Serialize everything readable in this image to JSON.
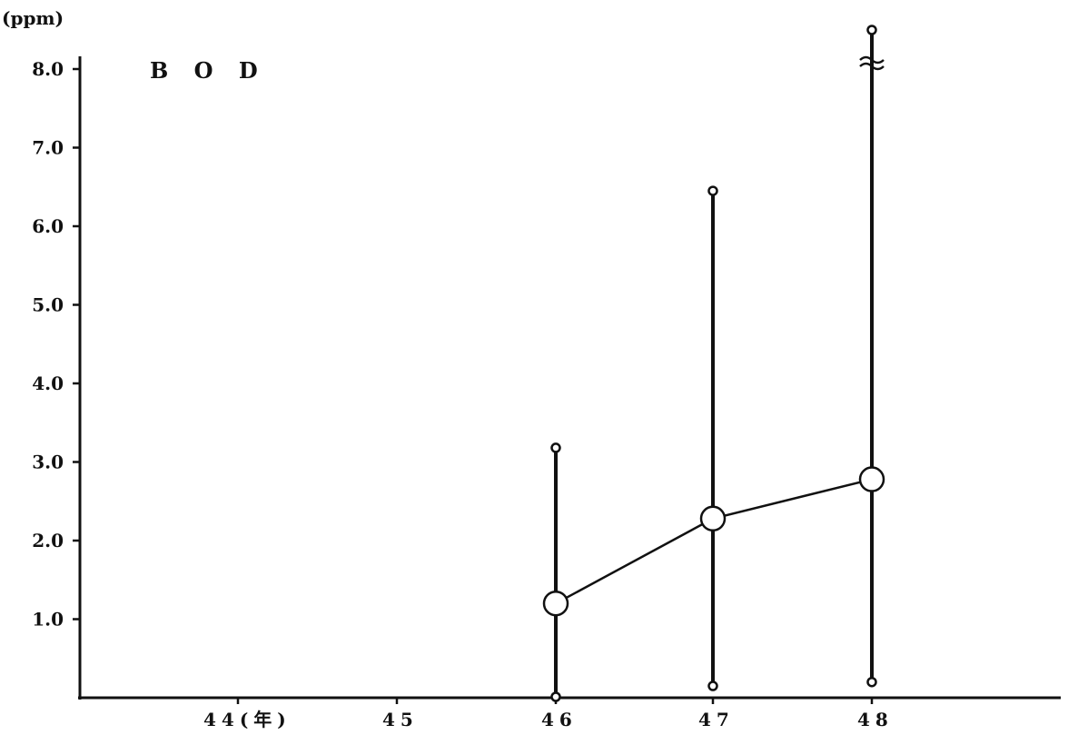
{
  "chart_data": {
    "type": "line",
    "title": "B O D",
    "unit_label": "(ppm)",
    "xlabel": "",
    "ylabel": "",
    "categories": [
      "44(年)",
      "45",
      "46",
      "47",
      "48"
    ],
    "y_ticks": [
      "1.0",
      "2.0",
      "3.0",
      "4.0",
      "5.0",
      "6.0",
      "7.0",
      "8.0"
    ],
    "ylim": [
      0,
      8.0
    ],
    "grid": false,
    "legend": "none",
    "series": [
      {
        "x": [
          "46",
          "47",
          "48"
        ],
        "values": [
          1.2,
          2.28,
          2.78
        ]
      }
    ],
    "ranges": [
      {
        "x": "46",
        "min": 0.0,
        "max": 3.18
      },
      {
        "x": "47",
        "min": 0.15,
        "max": 6.45
      },
      {
        "x": "48",
        "min": 0.2,
        "max": 8.45,
        "axis_break": true
      }
    ],
    "line_color": "#111111"
  }
}
